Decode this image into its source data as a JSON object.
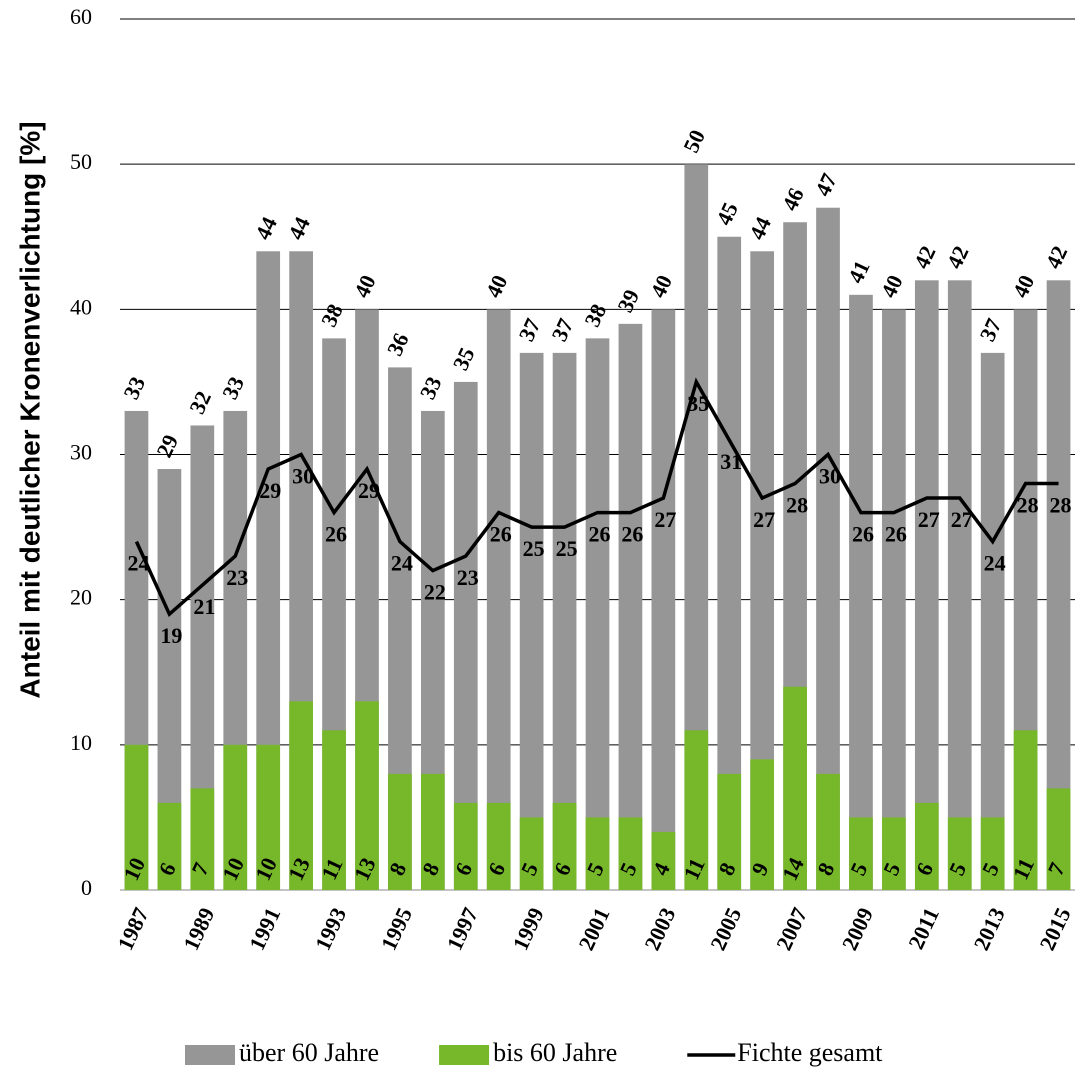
{
  "chart_data": {
    "type": "bar",
    "y_label": "Anteil mit deutlicher Kronenverlichtung [%]",
    "categories": [
      "1987",
      null,
      "1989",
      null,
      "1991",
      null,
      "1993",
      null,
      "1995",
      null,
      "1997",
      null,
      "1999",
      null,
      "2001",
      null,
      "2003",
      null,
      "2005",
      null,
      "2007",
      null,
      "2009",
      null,
      "2011",
      null,
      "2013",
      null,
      "2015"
    ],
    "series": [
      {
        "name": "über 60 Jahre",
        "type": "bar",
        "color": "#969696",
        "values": [
          33,
          29,
          32,
          33,
          44,
          44,
          38,
          40,
          36,
          33,
          35,
          40,
          37,
          37,
          38,
          39,
          40,
          50,
          45,
          44,
          46,
          47,
          41,
          40,
          42,
          42,
          37,
          40,
          42
        ]
      },
      {
        "name": "bis 60 Jahre",
        "type": "bar",
        "color": "#77b82a",
        "values": [
          10,
          6,
          7,
          10,
          10,
          13,
          11,
          13,
          8,
          8,
          6,
          6,
          5,
          6,
          5,
          5,
          4,
          11,
          8,
          9,
          14,
          8,
          5,
          5,
          6,
          5,
          5,
          11,
          7
        ]
      },
      {
        "name": "Fichte gesamt",
        "type": "line",
        "color": "#000000",
        "values": [
          24,
          19,
          21,
          23,
          29,
          30,
          26,
          29,
          24,
          22,
          23,
          26,
          25,
          25,
          26,
          26,
          27,
          35,
          31,
          27,
          28,
          30,
          26,
          26,
          27,
          27,
          24,
          28,
          28
        ]
      }
    ],
    "ylim": [
      0,
      60
    ],
    "yticks": [
      0,
      10,
      20,
      30,
      40,
      50,
      60
    ],
    "grid": true,
    "legend": "bottom"
  }
}
